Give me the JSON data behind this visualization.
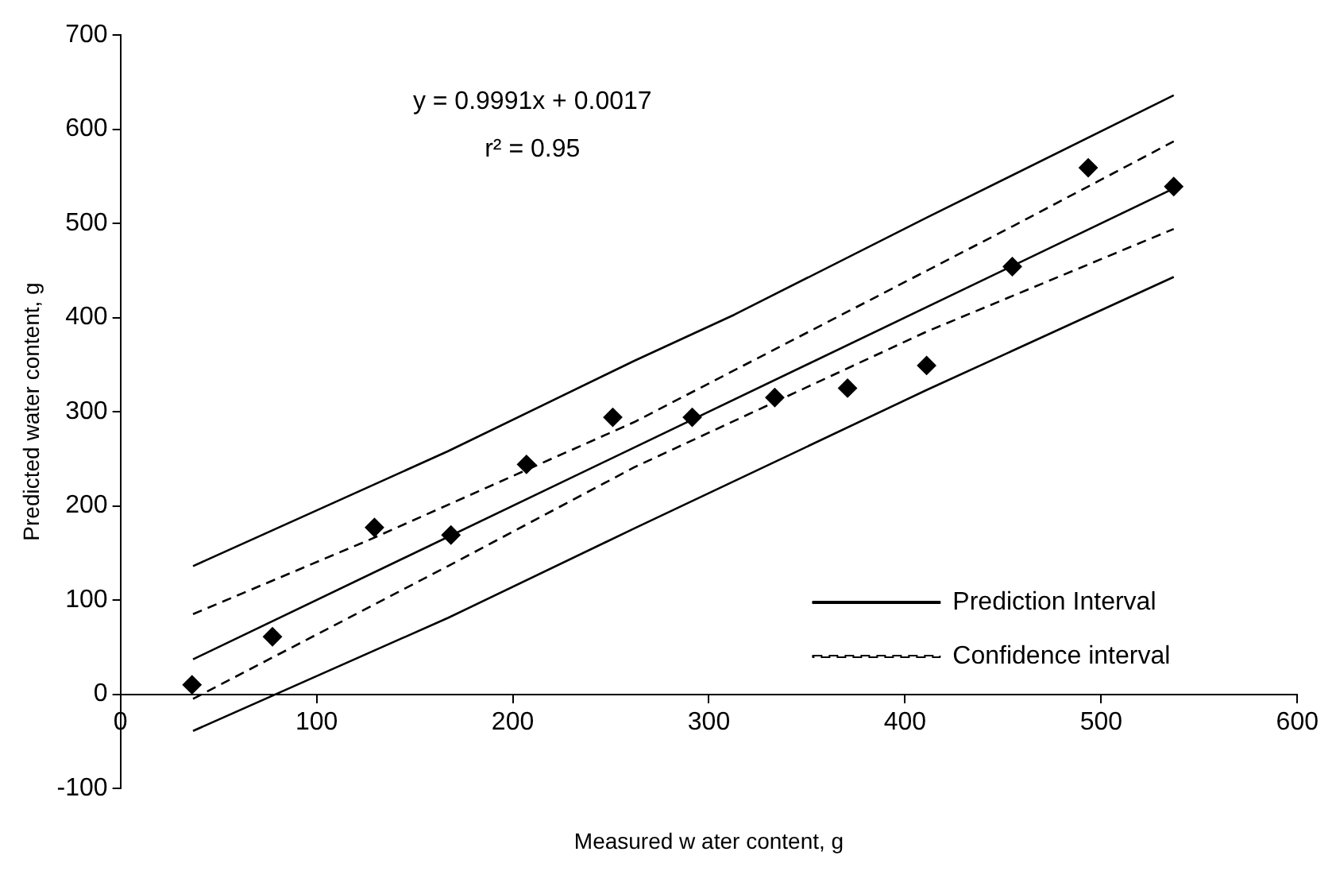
{
  "chart_data": {
    "type": "scatter",
    "xlabel": "Measured w ater content, g",
    "ylabel": "Predicted water content, g",
    "annotations": [
      "y = 0.9991x + 0.0017",
      "r² = 0.95"
    ],
    "xlim": [
      0,
      600
    ],
    "xticks": [
      0,
      100,
      200,
      300,
      400,
      500,
      600
    ],
    "ylim": [
      -100,
      700
    ],
    "yticks": [
      -100,
      0,
      100,
      200,
      300,
      400,
      500,
      600,
      700
    ],
    "grid": false,
    "legend": "bottom right",
    "series": [
      {
        "color": "#000000",
        "marker": "diamond",
        "x": [
          36.5,
          77.5,
          129.5,
          168.5,
          207,
          251,
          291.5,
          333.6,
          370.7,
          411,
          454.7,
          493.4,
          537
        ],
        "values": [
          10,
          61,
          177,
          169,
          244,
          294,
          294,
          315,
          325,
          349,
          454,
          559,
          539
        ]
      },
      {
        "type": "line",
        "color": "#000000",
        "marker": "none",
        "line_style": "solid",
        "x": [
          37,
          537
        ],
        "values": [
          37,
          537
        ]
      },
      {
        "type": "line",
        "name": "Prediction Interval",
        "color": "#000000",
        "marker": "none",
        "line_style": "solid",
        "x": [
          37,
          167,
          262,
          313,
          411,
          537
        ],
        "values": [
          136,
          258,
          354,
          403,
          506,
          636
        ]
      },
      {
        "type": "line",
        "color": "#000000",
        "marker": "none",
        "line_style": "solid",
        "x": [
          37,
          167,
          262,
          411,
          537
        ],
        "values": [
          -39,
          81,
          176,
          323,
          443
        ]
      },
      {
        "type": "line",
        "name": "Confidence interval",
        "color": "#000000",
        "marker": "none",
        "line_style": "dashed",
        "x": [
          37,
          127,
          262,
          455,
          537
        ],
        "values": [
          85,
          164,
          289,
          497,
          587
        ]
      },
      {
        "type": "line",
        "color": "#000000",
        "marker": "none",
        "line_style": "dashed",
        "x": [
          37,
          167,
          262,
          411,
          537
        ],
        "values": [
          -5,
          136,
          241,
          385,
          494
        ]
      }
    ]
  }
}
